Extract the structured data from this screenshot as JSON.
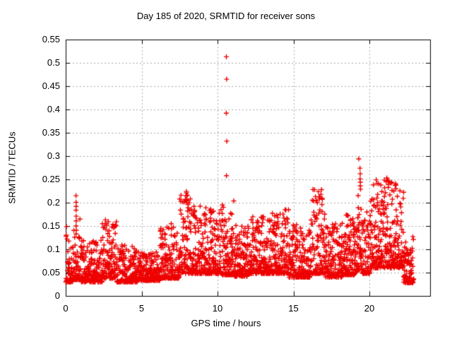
{
  "chart_data": {
    "type": "scatter",
    "title": "Day 185 of 2020, SRMTID for receiver sons",
    "xlabel": "GPS time / hours",
    "ylabel": "SRMTID / TECUs",
    "xlim": [
      0,
      24
    ],
    "ylim": [
      0,
      0.55
    ],
    "xticks": [
      0,
      5,
      10,
      15,
      20
    ],
    "xtick_labels": [
      "0",
      "5",
      "10",
      "15",
      "20"
    ],
    "yticks": [
      0,
      0.05,
      0.1,
      0.15,
      0.2,
      0.25,
      0.3,
      0.35,
      0.4,
      0.45,
      0.5,
      0.55
    ],
    "ytick_labels": [
      "0",
      "0.05",
      "0.1",
      "0.15",
      "0.2",
      "0.25",
      "0.3",
      "0.35",
      "0.4",
      "0.45",
      "0.5",
      "0.55"
    ],
    "grid": true,
    "legend": "none",
    "background": "#ffffff",
    "frame_color": "#000000",
    "grid_color": "#a9a9a9",
    "marker": {
      "glyph": "+",
      "color": "#ee0000",
      "size": 7,
      "stroke": 1.4
    },
    "x_data_start": 0.02,
    "x_data_end": 22.92,
    "outlier_points": [
      [
        10.58,
        0.513
      ],
      [
        10.6,
        0.465
      ],
      [
        10.58,
        0.392
      ],
      [
        10.61,
        0.332
      ],
      [
        10.59,
        0.258
      ],
      [
        19.3,
        0.294
      ],
      [
        19.38,
        0.274
      ],
      [
        19.4,
        0.262
      ],
      [
        19.39,
        0.251
      ],
      [
        19.41,
        0.244
      ],
      [
        19.4,
        0.236
      ],
      [
        19.42,
        0.229
      ],
      [
        0.68,
        0.215
      ],
      [
        0.685,
        0.201
      ],
      [
        0.69,
        0.192
      ],
      [
        0.68,
        0.184
      ],
      [
        0.695,
        0.171
      ],
      [
        0.69,
        0.161
      ],
      [
        0.685,
        0.15
      ],
      [
        0.7,
        0.141
      ],
      [
        0.69,
        0.133
      ],
      [
        7.95,
        0.224
      ],
      [
        8.02,
        0.216
      ],
      [
        7.98,
        0.206
      ],
      [
        8.05,
        0.196
      ],
      [
        8.45,
        0.192
      ],
      [
        8.5,
        0.183
      ],
      [
        9.55,
        0.186
      ],
      [
        9.6,
        0.178
      ],
      [
        16.45,
        0.213
      ],
      [
        16.5,
        0.205
      ],
      [
        16.85,
        0.228
      ],
      [
        16.9,
        0.207
      ],
      [
        16.88,
        0.196
      ],
      [
        21.15,
        0.253
      ],
      [
        21.22,
        0.247
      ],
      [
        21.25,
        0.239
      ],
      [
        21.7,
        0.237
      ],
      [
        21.75,
        0.23
      ],
      [
        20.5,
        0.21
      ],
      [
        20.55,
        0.2
      ],
      [
        14.45,
        0.185
      ],
      [
        2.62,
        0.163
      ],
      [
        2.7,
        0.155
      ],
      [
        3.05,
        0.148
      ],
      [
        6.95,
        0.155
      ],
      [
        7.1,
        0.147
      ],
      [
        12.9,
        0.168
      ],
      [
        13.3,
        0.162
      ],
      [
        18.6,
        0.172
      ]
    ],
    "density_model": {
      "seed": 185,
      "streak_prob": 0.07,
      "streak_expo": 1.5,
      "jitter_h": 0.02,
      "segments": [
        [
          0.0,
          0.5,
          0.03,
          0.15,
          115,
          3.0
        ],
        [
          0.5,
          0.95,
          0.035,
          0.17,
          115,
          3.2
        ],
        [
          0.95,
          2.4,
          0.03,
          0.12,
          112,
          2.6
        ],
        [
          2.4,
          3.35,
          0.038,
          0.16,
          112,
          2.6
        ],
        [
          3.35,
          4.7,
          0.03,
          0.11,
          110,
          2.6
        ],
        [
          4.7,
          6.2,
          0.033,
          0.095,
          112,
          2.4
        ],
        [
          6.2,
          7.5,
          0.038,
          0.15,
          112,
          2.6
        ],
        [
          7.5,
          8.25,
          0.048,
          0.225,
          112,
          2.6
        ],
        [
          8.25,
          9.0,
          0.048,
          0.195,
          112,
          2.5
        ],
        [
          9.0,
          10.3,
          0.048,
          0.19,
          112,
          2.6
        ],
        [
          10.3,
          11.1,
          0.045,
          0.205,
          112,
          2.5
        ],
        [
          11.1,
          12.0,
          0.042,
          0.16,
          112,
          2.5
        ],
        [
          12.0,
          13.6,
          0.048,
          0.17,
          112,
          2.5
        ],
        [
          13.6,
          14.7,
          0.048,
          0.185,
          112,
          2.5
        ],
        [
          14.7,
          15.6,
          0.04,
          0.17,
          110,
          2.7
        ],
        [
          15.6,
          16.1,
          0.04,
          0.145,
          110,
          2.5
        ],
        [
          16.1,
          17.1,
          0.048,
          0.23,
          112,
          2.7
        ],
        [
          17.1,
          18.2,
          0.04,
          0.155,
          110,
          2.5
        ],
        [
          18.2,
          19.2,
          0.045,
          0.18,
          112,
          2.5
        ],
        [
          19.2,
          19.55,
          0.055,
          0.24,
          112,
          2.2
        ],
        [
          19.55,
          20.1,
          0.048,
          0.185,
          110,
          2.4
        ],
        [
          20.1,
          22.25,
          0.06,
          0.25,
          115,
          2.1
        ],
        [
          22.25,
          22.92,
          0.028,
          0.13,
          115,
          2.6
        ]
      ]
    }
  }
}
